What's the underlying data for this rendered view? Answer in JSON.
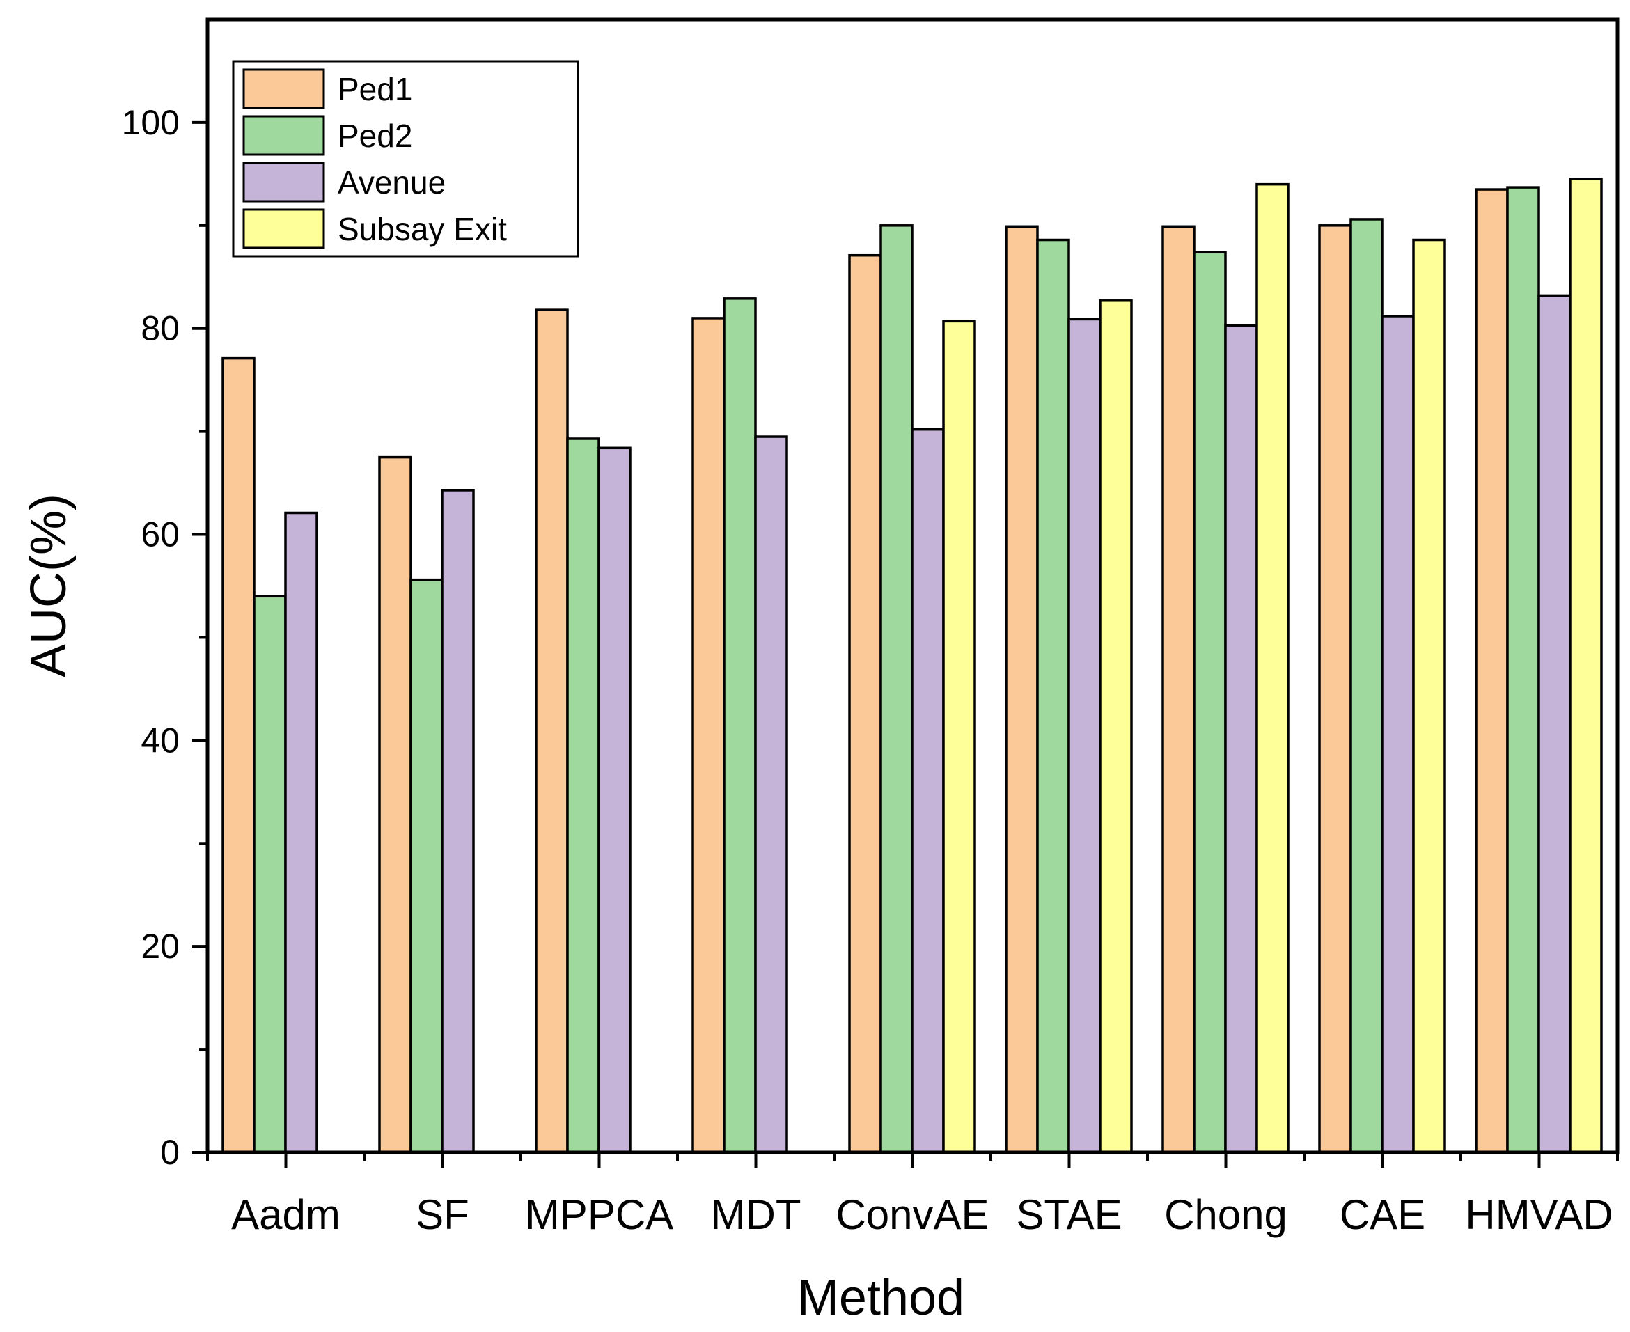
{
  "chart_data": {
    "type": "bar",
    "title": "",
    "xlabel": "Method",
    "ylabel": "AUC(%)",
    "ylim": [
      0,
      110
    ],
    "yticks": [
      0,
      20,
      40,
      60,
      80,
      100
    ],
    "grid": false,
    "legend_position": "top-left",
    "categories": [
      "Aadm",
      "SF",
      "MPPCA",
      "MDT",
      "ConvAE",
      "STAE",
      "Chong",
      "CAE",
      "HMVAD"
    ],
    "series": [
      {
        "name": "Ped1",
        "color": "#FBC897",
        "values": [
          77.1,
          67.5,
          81.8,
          81.0,
          87.1,
          89.9,
          89.9,
          90.0,
          93.5
        ]
      },
      {
        "name": "Ped2",
        "color": "#A0D99D",
        "values": [
          54.0,
          55.6,
          69.3,
          82.9,
          90.0,
          88.6,
          87.4,
          90.6,
          93.7
        ]
      },
      {
        "name": "Avenue",
        "color": "#C5B3D8",
        "values": [
          62.1,
          64.3,
          68.4,
          69.5,
          70.2,
          80.9,
          80.3,
          81.2,
          83.2
        ]
      },
      {
        "name": "Subsay Exit",
        "color": "#FFFF9A",
        "values": [
          null,
          null,
          null,
          null,
          80.7,
          82.7,
          94.0,
          88.6,
          94.5
        ]
      }
    ]
  }
}
